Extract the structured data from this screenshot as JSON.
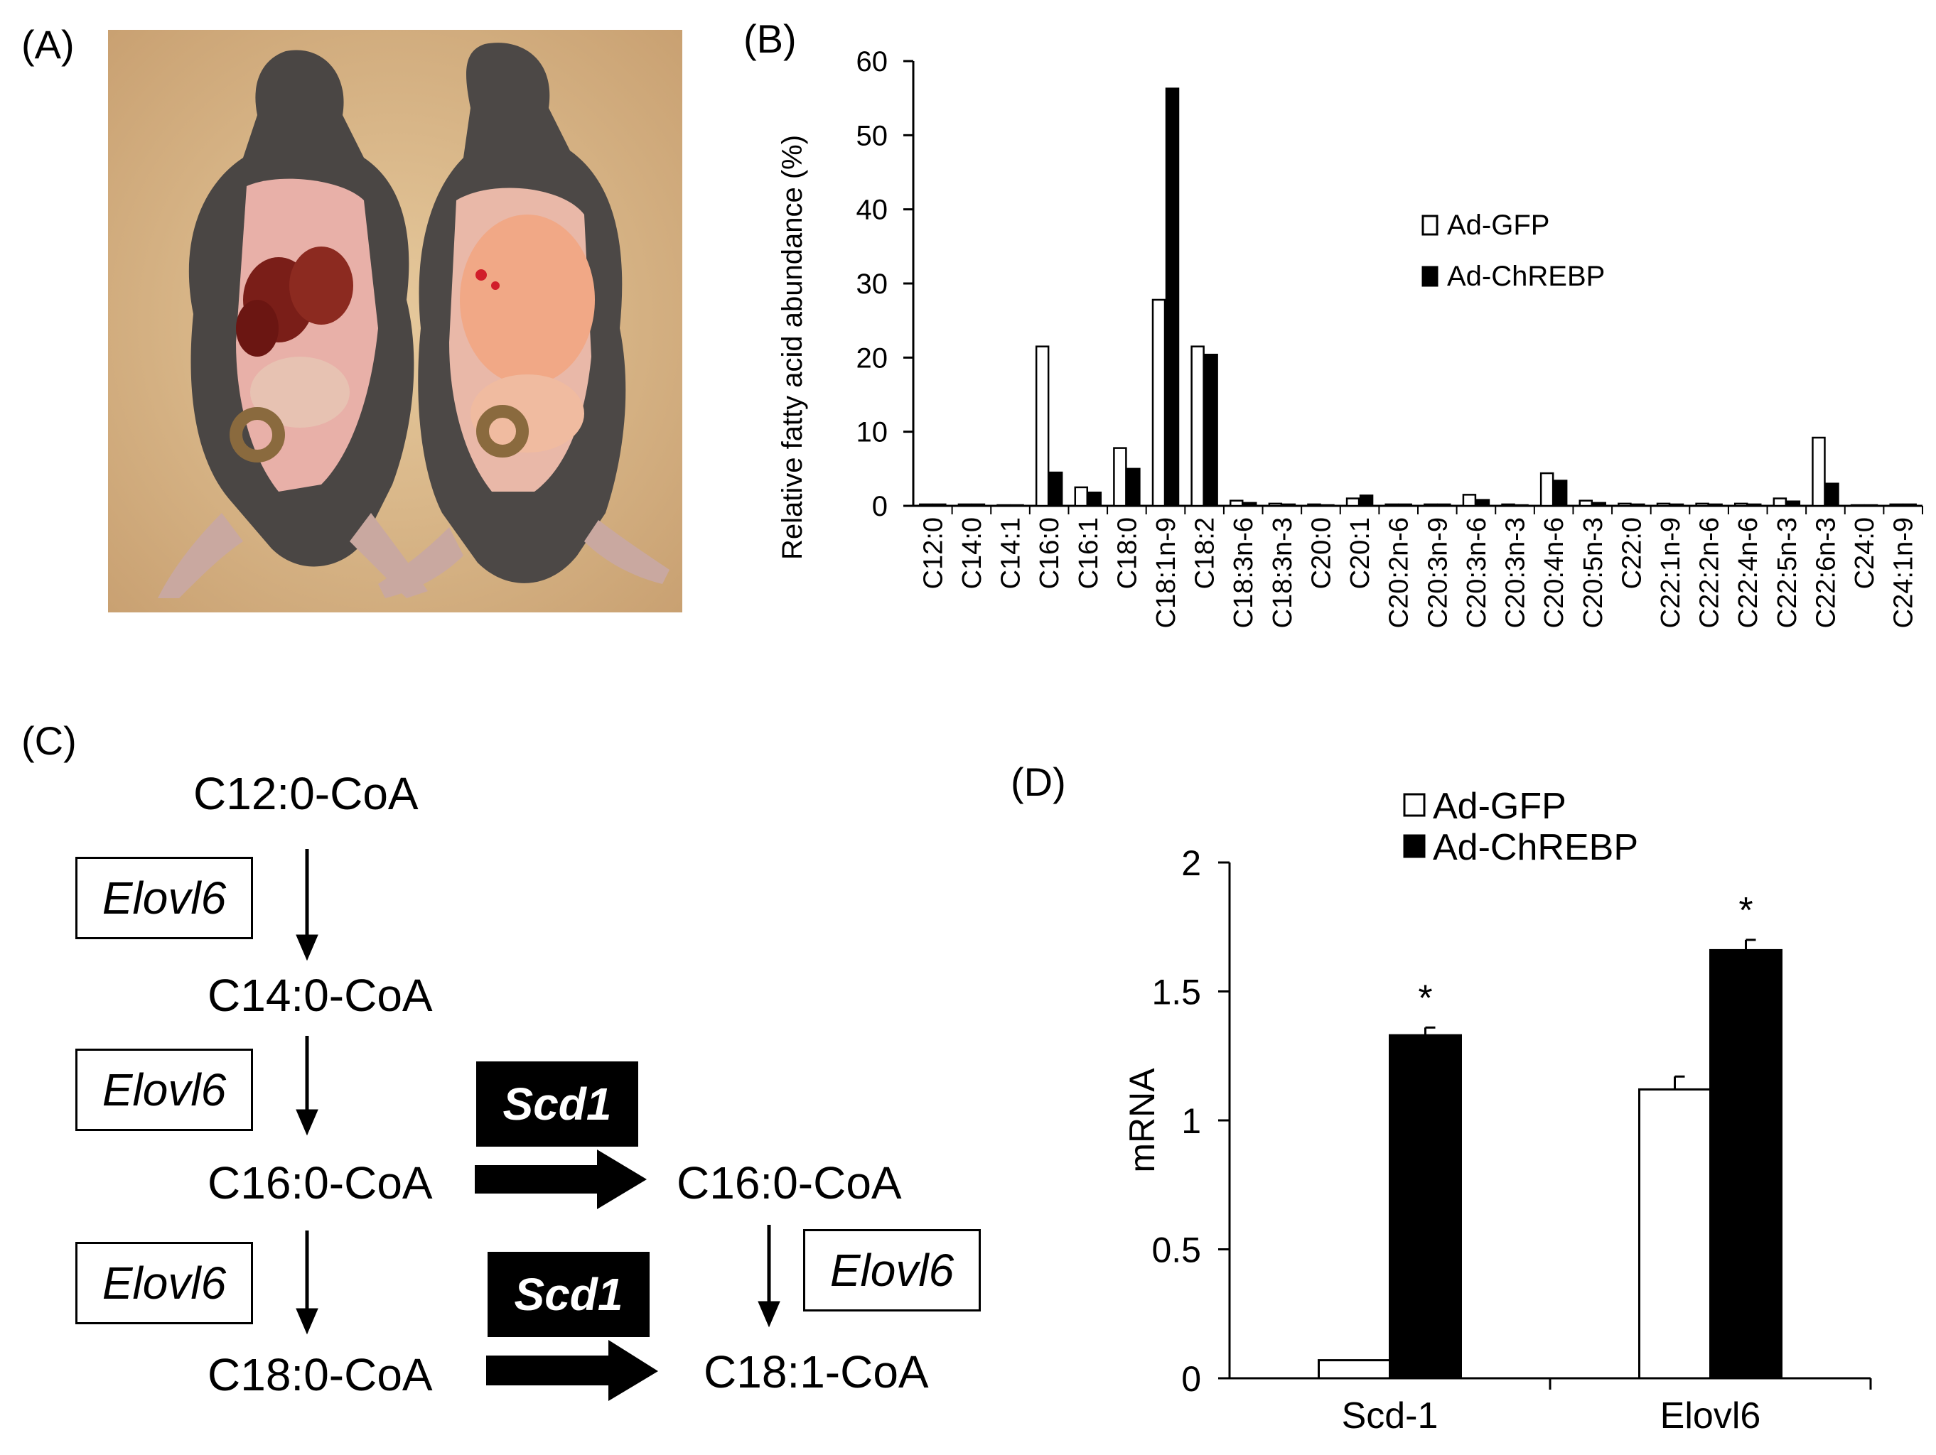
{
  "panels": {
    "a": "(A)",
    "b": "(B)",
    "c": "(C)",
    "d": "(D)"
  },
  "photo": {
    "description_icon": "mouse-dissection-photo"
  },
  "chart_data": [
    {
      "type": "bar",
      "id": "B",
      "ylabel": "Relative fatty acid abundance (%)",
      "xlabel": "",
      "ylim": [
        0,
        60
      ],
      "yticks": [
        0,
        10,
        20,
        30,
        40,
        50,
        60
      ],
      "legend_position": "top-right",
      "categories": [
        "C12:0",
        "C14:0",
        "C14:1",
        "C16:0",
        "C16:1",
        "C18:0",
        "C18:1n-9",
        "C18:2",
        "C18:3n-6",
        "C18:3n-3",
        "C20:0",
        "C20:1",
        "C20:2n-6",
        "C20:3n-9",
        "C20:3n-6",
        "C20:3n-3",
        "C20:4n-6",
        "C20:5n-3",
        "C22:0",
        "C22:1n-9",
        "C22:2n-6",
        "C22:4n-6",
        "C22:5n-3",
        "C22:6n-3",
        "C24:0",
        "C24:1n-9"
      ],
      "series": [
        {
          "name": "Ad-GFP",
          "color": "#ffffff",
          "values": [
            0.2,
            0.2,
            0.1,
            21.5,
            2.5,
            7.8,
            27.8,
            21.5,
            0.7,
            0.3,
            0.2,
            1.0,
            0.2,
            0.2,
            1.5,
            0.2,
            4.4,
            0.7,
            0.3,
            0.3,
            0.3,
            0.3,
            1.0,
            9.2,
            0.1,
            0.2
          ]
        },
        {
          "name": "Ad-ChREBP",
          "color": "#000000",
          "values": [
            0.2,
            0.2,
            0.1,
            4.5,
            1.8,
            5.0,
            56.3,
            20.4,
            0.4,
            0.2,
            0.1,
            1.4,
            0.2,
            0.2,
            0.8,
            0.1,
            3.4,
            0.4,
            0.2,
            0.2,
            0.2,
            0.2,
            0.6,
            3.0,
            0.1,
            0.2
          ]
        }
      ]
    },
    {
      "type": "bar",
      "id": "D",
      "ylabel": "mRNA",
      "xlabel": "",
      "ylim": [
        0,
        2
      ],
      "yticks": [
        "0",
        "0.5",
        "1",
        "1.5",
        "2"
      ],
      "legend_position": "top-left",
      "categories": [
        "Scd-1",
        "Elovl6"
      ],
      "series": [
        {
          "name": "Ad-GFP",
          "color": "#ffffff",
          "values": [
            0.07,
            1.12
          ],
          "errors": [
            0.0,
            0.05
          ]
        },
        {
          "name": "Ad-ChREBP",
          "color": "#000000",
          "values": [
            1.33,
            1.66
          ],
          "errors": [
            0.03,
            0.04
          ]
        }
      ],
      "annotations": [
        "*",
        "*"
      ]
    }
  ],
  "pathway": {
    "metabolites": {
      "c12": "C12:0-CoA",
      "c14": "C14:0-CoA",
      "c16": "C16:0-CoA",
      "c16_1": "C16:0-CoA",
      "c18": "C18:0-CoA",
      "c18_1": "C18:1-CoA"
    },
    "enzymes": {
      "elovl6": "Elovl6",
      "scd1": "Scd1"
    }
  }
}
